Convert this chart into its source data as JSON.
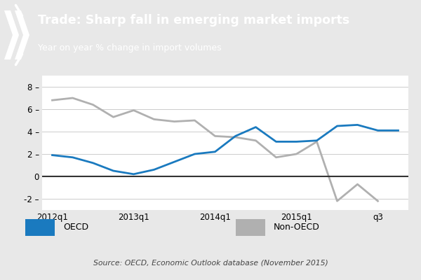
{
  "title": "Trade: Sharp fall in emerging market imports",
  "subtitle": "Year on year % change in import volumes",
  "source": "Source: OECD, Economic Outlook database (November 2015)",
  "title_bg_color": "#1a7abf",
  "title_text_color": "#ffffff",
  "plot_bg_color": "#ffffff",
  "outer_bg_color": "#e8e8e8",
  "oecd_color": "#1a7abf",
  "nonoecd_color": "#b0b0b0",
  "oecd_values": [
    1.9,
    1.7,
    1.2,
    0.5,
    0.2,
    0.6,
    1.3,
    2.0,
    2.2,
    3.6,
    4.4,
    3.1,
    3.1,
    3.2,
    4.5,
    4.6,
    4.1,
    4.1
  ],
  "nonoecd_values": [
    6.8,
    7.0,
    6.4,
    5.3,
    5.9,
    5.1,
    4.9,
    5.0,
    3.6,
    3.5,
    3.2,
    1.7,
    2.0,
    3.1,
    -2.2,
    -0.7,
    -2.2,
    null
  ],
  "ylim": [
    -3,
    9
  ],
  "yticks": [
    -2,
    0,
    2,
    4,
    6,
    8
  ],
  "xtick_positions": [
    0,
    4,
    8,
    12,
    16
  ],
  "xtick_labels": [
    "2012q1",
    "2013q1",
    "2014q1",
    "2015q1",
    "q3"
  ],
  "num_points": 18
}
